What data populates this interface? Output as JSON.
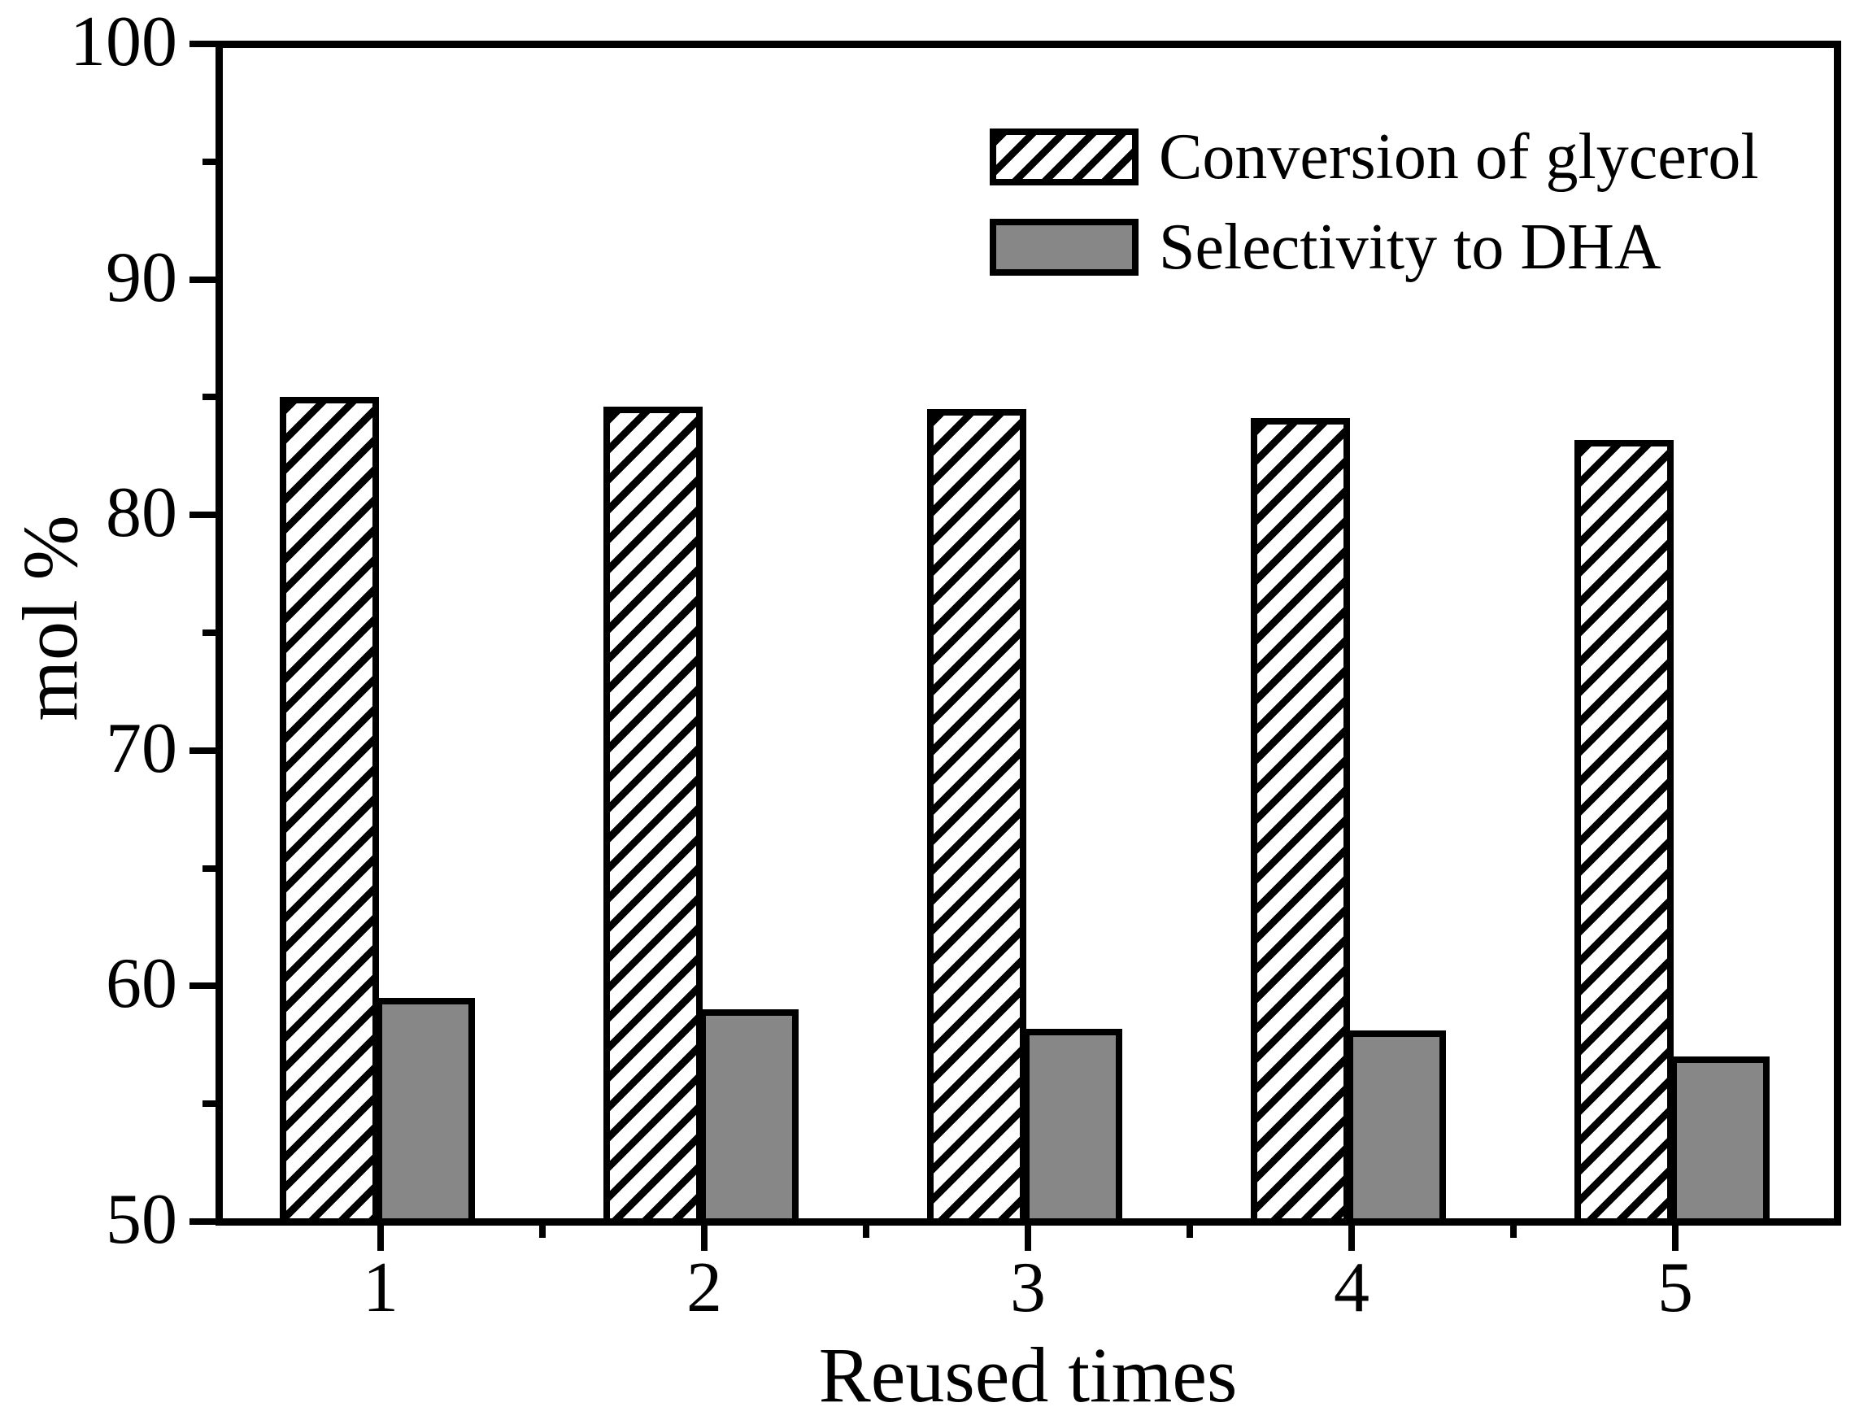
{
  "chart_data": {
    "type": "bar",
    "title": "",
    "categories": [
      "1",
      "2",
      "3",
      "4",
      "5"
    ],
    "series": [
      {
        "name": "Conversion of glycerol",
        "style": "hatched-diagonal",
        "values": [
          85.0,
          84.6,
          84.5,
          84.1,
          83.2
        ]
      },
      {
        "name": "Selectivity to DHA",
        "style": "solid-gray",
        "values": [
          59.5,
          59.0,
          58.2,
          58.1,
          57.0
        ]
      }
    ],
    "xlabel": "Reused times",
    "ylabel": "mol %",
    "ylim": [
      50,
      100
    ],
    "y_major_ticks": [
      50,
      60,
      70,
      80,
      90,
      100
    ],
    "y_minor_ticks": [
      55,
      65,
      75,
      85,
      95
    ],
    "grid": false,
    "legend_position": "upper-right-inside",
    "colors": {
      "bar_edge": "#000000",
      "gray_fill": "#878787",
      "background": "#ffffff",
      "text": "#000000"
    }
  }
}
